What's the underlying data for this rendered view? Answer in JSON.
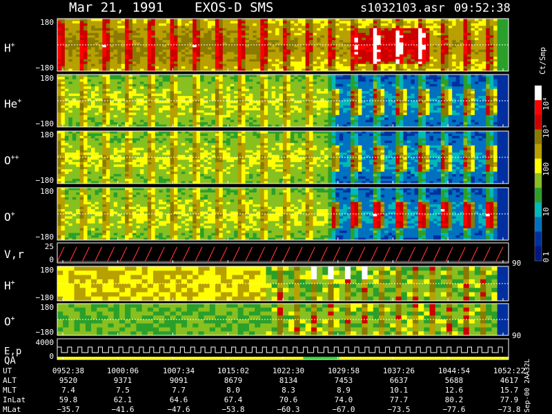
{
  "header": {
    "date": "Mar 21, 1991",
    "instrument": "EXOS-D SMS",
    "file": "s1032103.asr",
    "time": "09:52:38"
  },
  "colorbar": {
    "unit": "Ct/Smp",
    "tick_labels": [
      "10⁴",
      "10³",
      "100",
      "10",
      "1",
      "0"
    ],
    "colors": [
      "#ffffff",
      "#ff0000",
      "#cc0000",
      "#8a7a00",
      "#b8a000",
      "#ffff00",
      "#88c020",
      "#2aa02a",
      "#00b8b8",
      "#0070c0",
      "#0030a0",
      "#001880"
    ]
  },
  "panels": [
    {
      "label": "H",
      "sup": "+",
      "ymax": "180",
      "ymin": "−180",
      "kind": "spectro"
    },
    {
      "label": "He",
      "sup": "+",
      "ymax": "180",
      "ymin": "−180",
      "kind": "spectro"
    },
    {
      "label": "O",
      "sup": "++",
      "ymax": "180",
      "ymin": "−180",
      "kind": "spectro"
    },
    {
      "label": "O",
      "sup": "+",
      "ymax": "180",
      "ymin": "−180",
      "kind": "spectro"
    },
    {
      "label": "V,r",
      "sup": "",
      "ymax": "25",
      "ymin": "0",
      "kind": "line",
      "right_label": "90"
    },
    {
      "label": "H",
      "sup": "+",
      "ymax": "180",
      "ymin": "−180",
      "kind": "bands"
    },
    {
      "label": "O",
      "sup": "+",
      "ymax": "180",
      "ymin": "−180",
      "kind": "bands",
      "right_label": "90"
    },
    {
      "label": "E,p",
      "sup": "",
      "label2": "QA",
      "ymax": "4000",
      "ymin": "0",
      "kind": "step"
    }
  ],
  "footer": {
    "row_labels": [
      "UT",
      "ALT",
      "MLT",
      "InLat",
      "MLat"
    ],
    "columns": [
      {
        "UT": "0952:38",
        "ALT": "9520",
        "MLT": "7.4",
        "InLat": "59.8",
        "MLat": "−35.7"
      },
      {
        "UT": "1000:06",
        "ALT": "9371",
        "MLT": "7.5",
        "InLat": "62.1",
        "MLat": "−41.6"
      },
      {
        "UT": "1007:34",
        "ALT": "9091",
        "MLT": "7.7",
        "InLat": "64.6",
        "MLat": "−47.6"
      },
      {
        "UT": "1015:02",
        "ALT": "8679",
        "MLT": "8.0",
        "InLat": "67.4",
        "MLat": "−53.8"
      },
      {
        "UT": "1022:30",
        "ALT": "8134",
        "MLT": "8.3",
        "InLat": "70.6",
        "MLat": "−60.3"
      },
      {
        "UT": "1029:58",
        "ALT": "7453",
        "MLT": "8.9",
        "InLat": "74.0",
        "MLat": "−67.0"
      },
      {
        "UT": "1037:26",
        "ALT": "6637",
        "MLT": "10.1",
        "InLat": "77.7",
        "MLat": "−73.5"
      },
      {
        "UT": "1044:54",
        "ALT": "5688",
        "MLT": "12.6",
        "InLat": "80.2",
        "MLat": "−77.6"
      },
      {
        "UT": "1052:22",
        "ALT": "4617",
        "MLT": "15.7",
        "InLat": "77.9",
        "MLat": "−73.8"
      }
    ],
    "side_text": "Sep-00 2AA32L"
  },
  "chart_data": {
    "type": "heatmap",
    "title": "Mar 21, 1991   EXOS-D SMS",
    "x": [
      "0952:38",
      "1000:06",
      "1007:34",
      "1015:02",
      "1022:30",
      "1029:58",
      "1037:26",
      "1044:54",
      "1052:22"
    ],
    "ylim": [
      -180,
      180
    ],
    "series": [
      {
        "name": "H+"
      },
      {
        "name": "He+"
      },
      {
        "name": "O++"
      },
      {
        "name": "O+"
      }
    ],
    "colorbar_range": [
      "1",
      "10⁴"
    ]
  }
}
